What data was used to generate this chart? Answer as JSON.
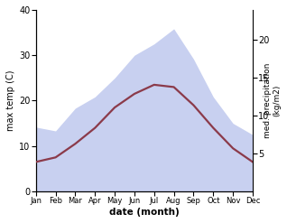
{
  "months": [
    "Jan",
    "Feb",
    "Mar",
    "Apr",
    "May",
    "Jun",
    "Jul",
    "Aug",
    "Sep",
    "Oct",
    "Nov",
    "Dec"
  ],
  "temperature": [
    6.5,
    7.5,
    10.5,
    14.0,
    18.5,
    21.5,
    23.5,
    23.0,
    19.0,
    14.0,
    9.5,
    6.5
  ],
  "precipitation": [
    8.5,
    8.0,
    11.0,
    12.5,
    15.0,
    18.0,
    19.5,
    21.5,
    17.5,
    12.5,
    9.0,
    7.5
  ],
  "temp_color": "#8b3a4a",
  "precip_fill_color": "#c8d0f0",
  "precip_edge_color": "#c8d0f0",
  "temp_ylim": [
    0,
    40
  ],
  "precip_ylim": [
    0,
    24
  ],
  "precip_yticks": [
    5,
    10,
    15,
    20
  ],
  "temp_yticks": [
    0,
    10,
    20,
    30,
    40
  ],
  "xlabel": "date (month)",
  "ylabel_left": "max temp (C)",
  "ylabel_right": "med. precipitation\n(kg/m2)",
  "line_width": 1.6,
  "bg_color": "#ffffff"
}
